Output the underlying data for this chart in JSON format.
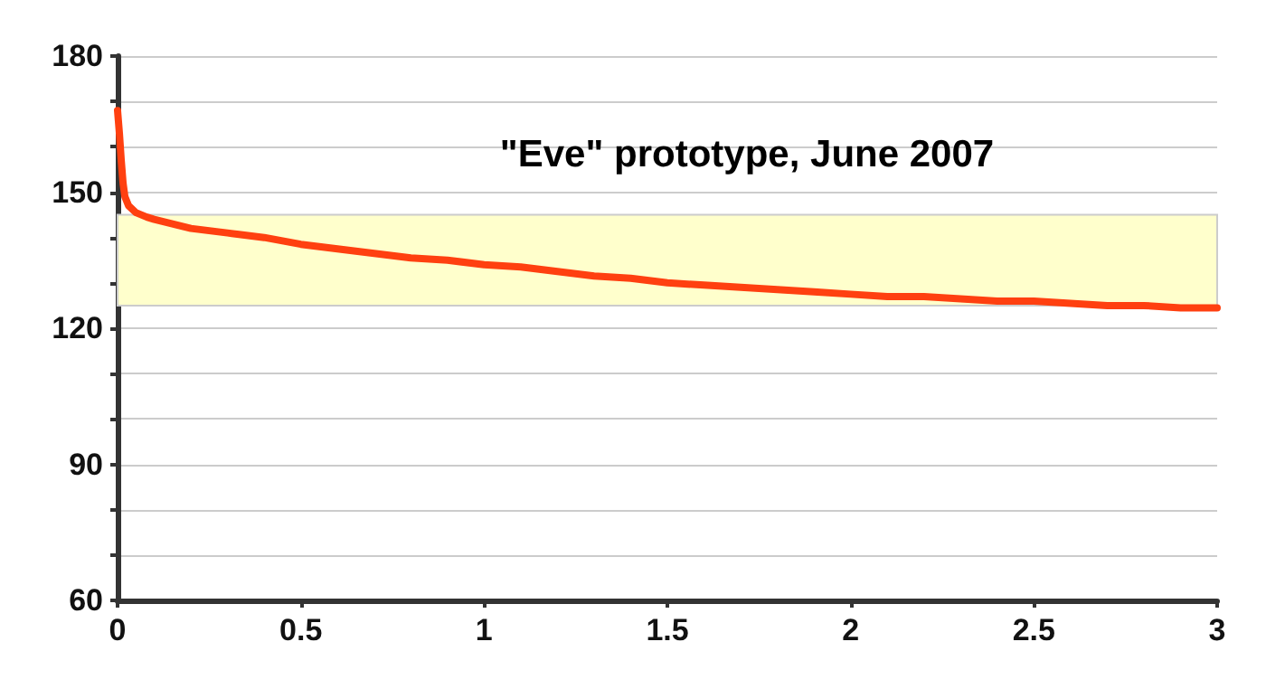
{
  "chart_data": {
    "type": "line",
    "title": "\"Eve\" prototype, June 2007",
    "x": [
      0,
      0.005,
      0.01,
      0.015,
      0.02,
      0.03,
      0.05,
      0.08,
      0.1,
      0.15,
      0.2,
      0.3,
      0.4,
      0.5,
      0.6,
      0.7,
      0.8,
      0.9,
      1,
      1.1,
      1.2,
      1.3,
      1.4,
      1.5,
      1.6,
      1.7,
      1.8,
      1.9,
      2,
      2.1,
      2.2,
      2.3,
      2.4,
      2.5,
      2.6,
      2.7,
      2.8,
      2.9,
      3
    ],
    "series": [
      {
        "color": "#ff4010",
        "values": [
          168,
          163,
          157,
          152,
          149,
          147,
          145.5,
          144.5,
          144,
          143,
          142,
          141,
          140,
          138.5,
          137.5,
          136.5,
          135.5,
          135,
          134,
          133.5,
          132.5,
          131.5,
          131,
          130,
          129.5,
          129,
          128.5,
          128,
          127.5,
          127,
          127,
          126.5,
          126,
          126,
          125.5,
          125,
          125,
          124.5,
          124.5
        ]
      }
    ],
    "xlim": [
      0,
      3
    ],
    "xticks": [
      0,
      0.5,
      1,
      1.5,
      2,
      2.5,
      3
    ],
    "ylim": [
      60,
      180
    ],
    "yticks": [
      60,
      {
        "value": 70,
        "label": null
      },
      {
        "value": 80,
        "label": null
      },
      90,
      {
        "value": 100,
        "label": null
      },
      {
        "value": 110,
        "label": null
      },
      120,
      {
        "value": 130,
        "label": null
      },
      {
        "value": 140,
        "label": null
      },
      150,
      {
        "value": 160,
        "label": null
      },
      {
        "value": 170,
        "label": null
      },
      180
    ],
    "bands": [
      {
        "axis": "y",
        "from": 125,
        "to": 145,
        "color": "#ffffcc"
      }
    ],
    "grid": "y",
    "marker": "none",
    "line_style": "solid"
  }
}
